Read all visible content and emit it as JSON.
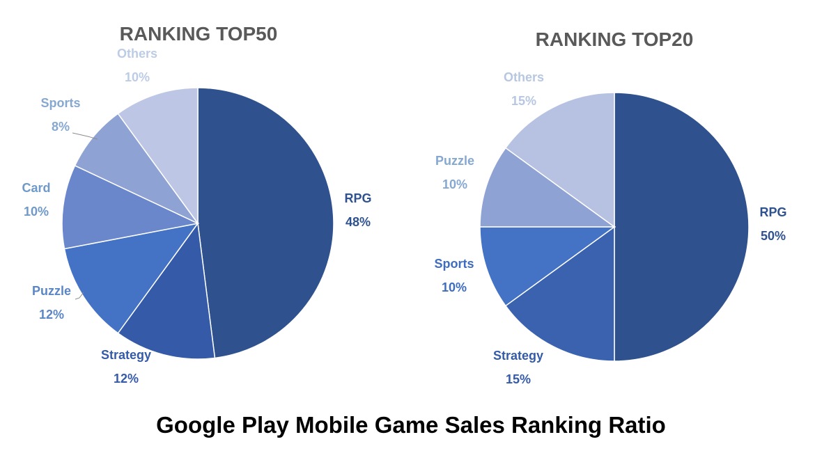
{
  "caption": "Google Play Mobile Game Sales Ranking Ratio",
  "chart_data": [
    {
      "type": "pie",
      "title": "RANKING TOP50",
      "start": "12 o'clock",
      "direction": "clockwise",
      "categories": [
        "RPG",
        "Strategy",
        "Puzzle",
        "Card",
        "Sports",
        "Others"
      ],
      "values": [
        48,
        12,
        12,
        10,
        8,
        10
      ],
      "data_labels": [
        "48%",
        "12%",
        "12%",
        "10%",
        "8%",
        "10%"
      ],
      "colors": [
        "#2F528F",
        "#345AA8",
        "#4472C4",
        "#6A87CC",
        "#8FA2D4",
        "#BDC6E4"
      ],
      "label_colors": [
        "#2F528F",
        "#345AA8",
        "#5B86C6",
        "#6E99C8",
        "#86A8D0",
        "#BDCCE6"
      ]
    },
    {
      "type": "pie",
      "title": "RANKING TOP20",
      "start": "12 o'clock",
      "direction": "clockwise",
      "categories": [
        "RPG",
        "Strategy",
        "Sports",
        "Puzzle",
        "Others"
      ],
      "values": [
        50,
        15,
        10,
        10,
        15
      ],
      "data_labels": [
        "50%",
        "15%",
        "10%",
        "10%",
        "15%"
      ],
      "colors": [
        "#2F528F",
        "#3A62AE",
        "#4472C4",
        "#8FA2D4",
        "#B7C1E2"
      ],
      "label_colors": [
        "#2F528F",
        "#345AA8",
        "#3E6CC0",
        "#86A8D0",
        "#B7C7E2"
      ]
    }
  ]
}
